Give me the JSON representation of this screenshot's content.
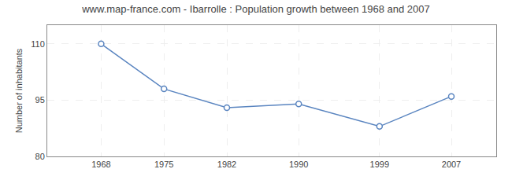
{
  "chart_data": {
    "type": "line",
    "title": "www.map-france.com - Ibarrolle : Population growth between 1968 and 2007",
    "ylabel": "Number of inhabitants",
    "x": [
      1968,
      1975,
      1982,
      1990,
      1999,
      2007
    ],
    "values": [
      110,
      98,
      93,
      94,
      88,
      96
    ],
    "color": "#5a85c0",
    "marker": "circle",
    "xlim": [
      1962,
      2012
    ],
    "xticks": [
      1968,
      1975,
      1982,
      1990,
      1999,
      2007
    ],
    "ylim": [
      80,
      115
    ],
    "yticks": [
      80,
      95,
      110
    ],
    "grid": true
  }
}
